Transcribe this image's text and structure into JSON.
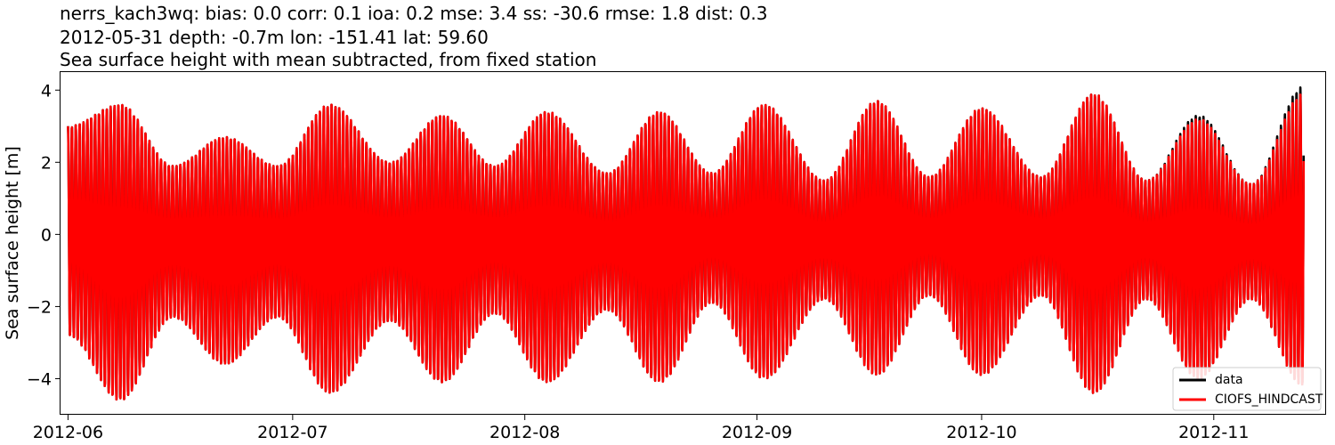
{
  "chart_data": {
    "type": "line",
    "title_lines": [
      "nerrs_kach3wq: bias: 0.0  corr: 0.1  ioa: 0.2  mse: 3.4  ss: -30.6  rmse: 1.8  dist: 0.3",
      "2012-05-31 depth: -0.7m lon: -151.41 lat: 59.60",
      "Sea surface height with mean subtracted, from fixed station"
    ],
    "xlabel": "",
    "ylabel": "Sea surface height [m]",
    "xlim": [
      "2012-05-31",
      "2012-11-16"
    ],
    "ylim": [
      -5,
      4.5
    ],
    "x_ticks": [
      "2012-06",
      "2012-07",
      "2012-08",
      "2012-09",
      "2012-10",
      "2012-11"
    ],
    "y_ticks": [
      -4,
      -2,
      0,
      2,
      4
    ],
    "y_tick_labels": [
      "−4",
      "−2",
      "0",
      "2",
      "4"
    ],
    "grid": false,
    "legend_position": "bottom-right",
    "series": [
      {
        "name": "data",
        "color": "#000000",
        "x_range": [
          "2012-06-01",
          "2012-11-13"
        ],
        "envelope_dates": [
          "2012-06-01",
          "2012-06-08",
          "2012-06-15",
          "2012-06-22",
          "2012-06-29",
          "2012-07-06",
          "2012-07-14",
          "2012-07-21",
          "2012-07-28",
          "2012-08-04",
          "2012-08-12",
          "2012-08-19",
          "2012-08-26",
          "2012-09-02",
          "2012-09-10",
          "2012-09-17",
          "2012-09-24",
          "2012-10-01",
          "2012-10-09",
          "2012-10-16",
          "2012-10-23",
          "2012-10-30",
          "2012-11-06",
          "2012-11-13"
        ],
        "envelope_high": [
          3.0,
          3.6,
          1.9,
          2.7,
          1.9,
          3.6,
          2.0,
          3.3,
          1.9,
          3.4,
          1.7,
          3.4,
          1.7,
          3.6,
          1.5,
          3.7,
          1.6,
          3.5,
          1.6,
          3.9,
          1.5,
          3.3,
          1.4,
          4.1
        ],
        "envelope_low": [
          -2.8,
          -4.6,
          -2.3,
          -3.6,
          -2.3,
          -4.4,
          -2.4,
          -4.1,
          -2.2,
          -4.1,
          -2.1,
          -4.1,
          -1.9,
          -4.0,
          -1.8,
          -3.9,
          -1.7,
          -3.9,
          -1.7,
          -4.4,
          -1.8,
          -4.0,
          -1.8,
          -4.2
        ]
      },
      {
        "name": "CIOFS_HINDCAST",
        "color": "#ff0000",
        "x_range": [
          "2012-06-01",
          "2012-11-13"
        ],
        "envelope_dates": [
          "2012-06-01",
          "2012-06-08",
          "2012-06-15",
          "2012-06-22",
          "2012-06-29",
          "2012-07-06",
          "2012-07-14",
          "2012-07-21",
          "2012-07-28",
          "2012-08-04",
          "2012-08-12",
          "2012-08-19",
          "2012-08-26",
          "2012-09-02",
          "2012-09-10",
          "2012-09-17",
          "2012-09-24",
          "2012-10-01",
          "2012-10-09",
          "2012-10-16",
          "2012-10-23",
          "2012-10-30",
          "2012-11-06",
          "2012-11-13"
        ],
        "envelope_high": [
          3.0,
          3.6,
          1.9,
          2.7,
          1.9,
          3.6,
          2.0,
          3.3,
          1.9,
          3.4,
          1.7,
          3.4,
          1.7,
          3.6,
          1.5,
          3.7,
          1.6,
          3.5,
          1.6,
          3.9,
          1.5,
          3.2,
          1.4,
          3.9
        ],
        "envelope_low": [
          -2.8,
          -4.6,
          -2.3,
          -3.6,
          -2.3,
          -4.4,
          -2.4,
          -4.1,
          -2.2,
          -4.1,
          -2.1,
          -4.1,
          -1.9,
          -4.0,
          -1.8,
          -3.9,
          -1.7,
          -3.9,
          -1.7,
          -4.4,
          -1.8,
          -4.0,
          -1.8,
          -4.2
        ]
      }
    ]
  }
}
